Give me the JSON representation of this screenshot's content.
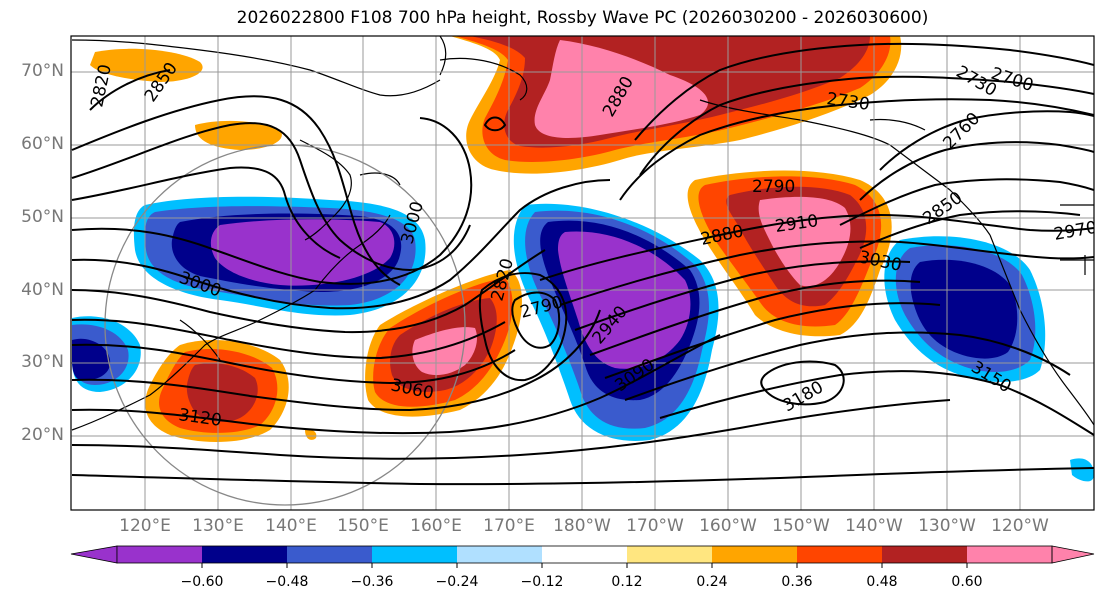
{
  "title": "2026022800 F108 700 hPa height, Rossby Wave PC (2026030200 - 2026030600)",
  "map": {
    "lat_labels": [
      "70°N",
      "60°N",
      "50°N",
      "40°N",
      "30°N",
      "20°N"
    ],
    "lon_labels": [
      "120°E",
      "130°E",
      "140°E",
      "150°E",
      "160°E",
      "170°E",
      "180°W",
      "170°W",
      "160°W",
      "150°W",
      "140°W",
      "130°W",
      "120°W"
    ],
    "contour_labels": [
      "2820",
      "2850",
      "2880",
      "2730",
      "2700",
      "2730",
      "2760",
      "2850",
      "2970",
      "3000",
      "3000",
      "2820",
      "2790",
      "2940",
      "3090",
      "3060",
      "3120",
      "2790",
      "2880",
      "2910",
      "3030",
      "3150",
      "3180"
    ]
  },
  "colorbar": {
    "ticks": [
      "−0.60",
      "−0.48",
      "−0.36",
      "−0.24",
      "−0.12",
      "0.12",
      "0.24",
      "0.36",
      "0.48",
      "0.60"
    ],
    "colors": [
      "#9932cc",
      "#00008b",
      "#3a5bcd",
      "#00bfff",
      "#b0e0ff",
      "#ffffff",
      "#ffe680",
      "#ffa500",
      "#ff4500",
      "#b22222",
      "#ff82ab"
    ]
  }
}
